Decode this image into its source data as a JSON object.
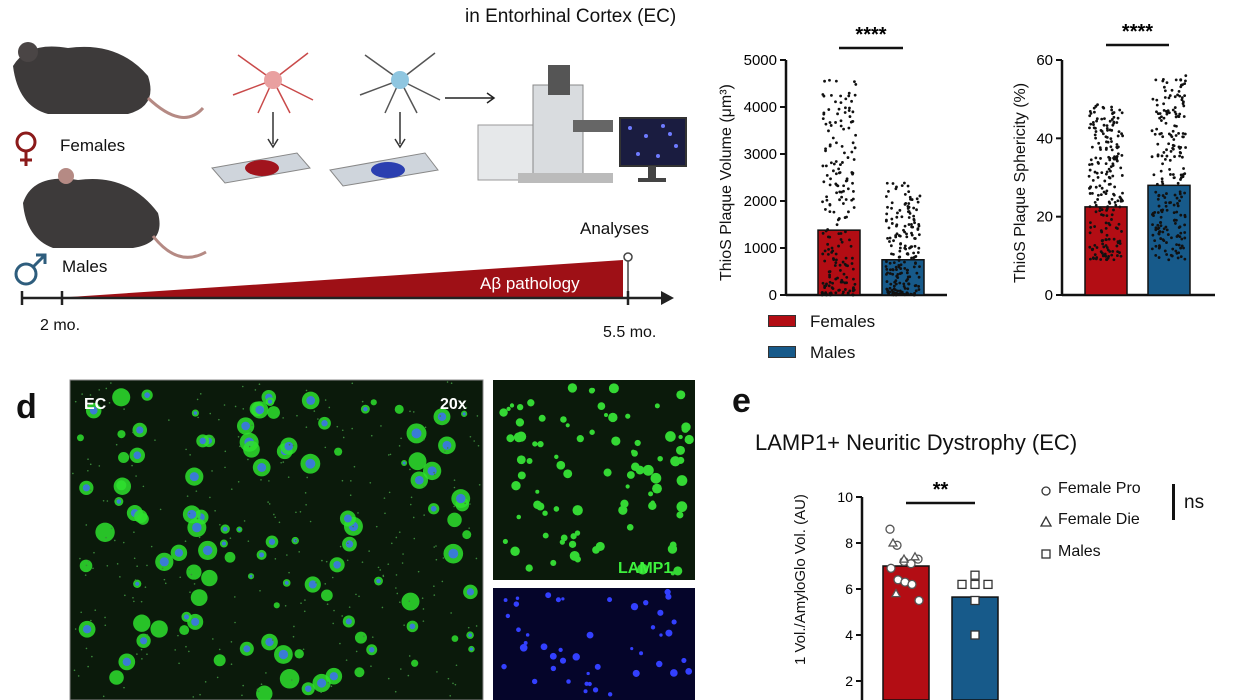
{
  "panel_c": {
    "heading": "in Entorhinal Cortex (EC)",
    "females_label": "Females",
    "males_label": "Males",
    "analyses_label": "Analyses",
    "pathology_label": "Aβ pathology",
    "start_label": "2 mo.",
    "end_label": "5.5 mo.",
    "icons": [
      "mouse-female",
      "mouse-male",
      "female-symbol",
      "male-symbol",
      "neuron-red",
      "neuron-blue",
      "slide",
      "microscope",
      "monitor"
    ]
  },
  "panel_d": {
    "letter": "d",
    "region_label": "EC",
    "magnification": "20x",
    "channel_label": "LAMP1"
  },
  "panel_e": {
    "letter": "e"
  },
  "colors": {
    "females": "#b30d14",
    "males": "#175a8a",
    "lamp1": "#2ee02e",
    "amyloglo": "#2b3cff"
  },
  "chart_data": [
    {
      "type": "bar",
      "categories": [
        "Females",
        "Males"
      ],
      "values": [
        1380,
        750
      ],
      "ylabel": "ThioS Plaque Volume (μm³)",
      "ylim": [
        0,
        5000
      ],
      "yticks": [
        "0",
        "1000",
        "2000",
        "3000",
        "4000",
        "5000"
      ],
      "significance": "****",
      "legend": [
        "Females",
        "Males"
      ],
      "legend_position": "bottom-left",
      "range_points": {
        "Females": [
          0,
          4600
        ],
        "Males": [
          0,
          2400
        ]
      }
    },
    {
      "type": "bar",
      "categories": [
        "Females",
        "Males"
      ],
      "values": [
        22.5,
        28
      ],
      "ylabel": "ThioS Plaque Sphericity (%)",
      "ylim": [
        0,
        60
      ],
      "yticks": [
        "0",
        "20",
        "40",
        "60"
      ],
      "significance": "****",
      "range_points": {
        "Females": [
          9,
          49
        ],
        "Males": [
          9,
          56
        ]
      }
    },
    {
      "type": "bar",
      "title": "LAMP1+ Neuritic Dystrophy (EC)",
      "categories": [
        "Females",
        "Males"
      ],
      "values": [
        7.0,
        5.65
      ],
      "ylabel": "1 Vol./AmyloGlo Vol. (AU)",
      "ylim": [
        0,
        10
      ],
      "yticks": [
        "2",
        "4",
        "6",
        "8",
        "10"
      ],
      "significance": "**",
      "legend": [
        "Female Pro",
        "Female Die",
        "Males"
      ],
      "legend_note": "ns",
      "points": {
        "Female Pro": [
          8.6,
          7.9,
          7.2,
          7.1,
          7.3,
          6.9,
          6.4,
          6.3,
          6.2,
          5.5
        ],
        "Female Die": [
          8.0,
          7.3,
          7.4,
          5.8
        ],
        "Males": [
          6.6,
          6.2,
          6.2,
          6.2,
          5.5,
          4.0
        ]
      }
    }
  ]
}
